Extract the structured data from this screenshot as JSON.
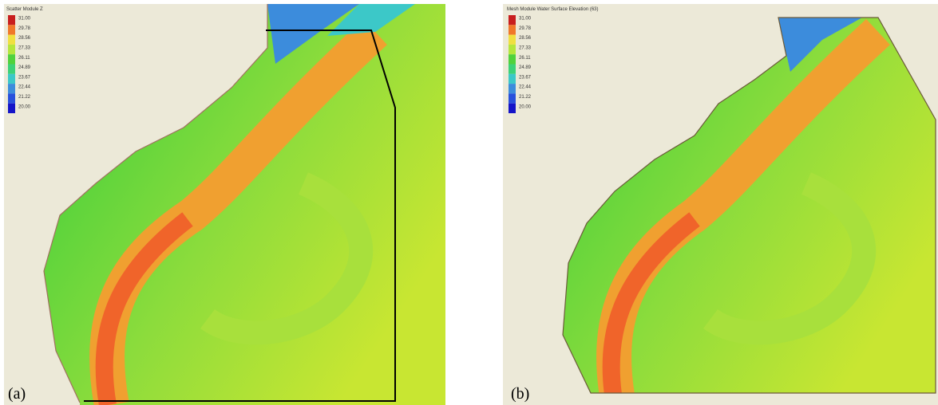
{
  "panels": [
    {
      "label": "(a)",
      "legend": {
        "title": "Scatter Module Z",
        "entries": [
          {
            "label": "31.00",
            "color": "#c81e1e"
          },
          {
            "label": "29.78",
            "color": "#f0782a"
          },
          {
            "label": "28.56",
            "color": "#f0e040"
          },
          {
            "label": "27.33",
            "color": "#b4e63c"
          },
          {
            "label": "26.11",
            "color": "#50d23c"
          },
          {
            "label": "24.89",
            "color": "#3cd278"
          },
          {
            "label": "23.67",
            "color": "#3cc8c8"
          },
          {
            "label": "22.44",
            "color": "#3c8cdc"
          },
          {
            "label": "21.22",
            "color": "#2850dc"
          },
          {
            "label": "20.00",
            "color": "#1414c8"
          }
        ]
      }
    },
    {
      "label": "(b)",
      "legend": {
        "title": "Mesh Module Water Surface Elevation (63)",
        "entries": [
          {
            "label": "31.00",
            "color": "#c81e1e"
          },
          {
            "label": "29.78",
            "color": "#f0782a"
          },
          {
            "label": "28.56",
            "color": "#f0e040"
          },
          {
            "label": "27.33",
            "color": "#b4e63c"
          },
          {
            "label": "26.11",
            "color": "#50d23c"
          },
          {
            "label": "24.89",
            "color": "#3cd278"
          },
          {
            "label": "23.67",
            "color": "#3cc8c8"
          },
          {
            "label": "22.44",
            "color": "#3c8cdc"
          },
          {
            "label": "21.22",
            "color": "#2850dc"
          },
          {
            "label": "20.00",
            "color": "#1414c8"
          }
        ]
      }
    }
  ]
}
